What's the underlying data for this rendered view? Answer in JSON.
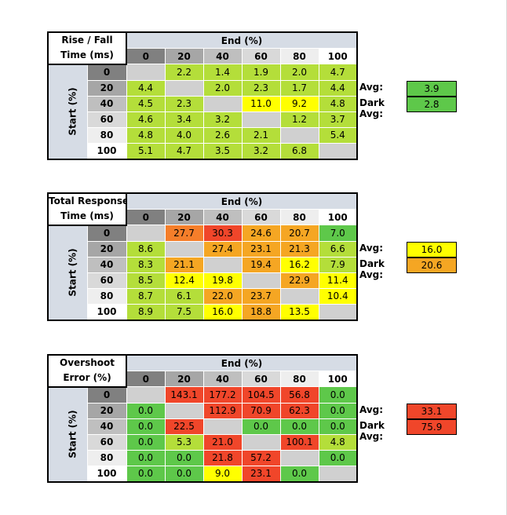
{
  "end_label": "End (%)",
  "start_label": "Start (%)",
  "columns": [
    "0",
    "20",
    "40",
    "60",
    "80",
    "100"
  ],
  "rows": [
    "0",
    "20",
    "40",
    "60",
    "80",
    "100"
  ],
  "avg_label": "Avg:",
  "dark_avg_label": "Dark Avg:",
  "colors": {
    "green": "#5ec84a",
    "yellowgreen": "#92d050",
    "lightgreen": "#b4de3a",
    "yellow": "#ffff00",
    "orange": "#f5a623",
    "darkorange": "#f57e2a",
    "red": "#f0462a",
    "grey": "#d0d0d0"
  },
  "tables": [
    {
      "corner": [
        "Rise / Fall",
        "Time (ms)"
      ],
      "cells": [
        [
          "",
          "2.2",
          "1.4",
          "1.9",
          "2.0",
          "4.7"
        ],
        [
          "4.4",
          "",
          "2.0",
          "2.3",
          "1.7",
          "4.4"
        ],
        [
          "4.5",
          "2.3",
          "",
          "11.0",
          "9.2",
          "4.8"
        ],
        [
          "4.6",
          "3.4",
          "3.2",
          "",
          "1.2",
          "3.7"
        ],
        [
          "4.8",
          "4.0",
          "2.6",
          "2.1",
          "",
          "5.4"
        ],
        [
          "5.1",
          "4.7",
          "3.5",
          "3.2",
          "6.8",
          ""
        ]
      ],
      "cell_colors": [
        [
          "grey",
          "lightgreen",
          "lightgreen",
          "lightgreen",
          "lightgreen",
          "lightgreen"
        ],
        [
          "lightgreen",
          "grey",
          "lightgreen",
          "lightgreen",
          "lightgreen",
          "lightgreen"
        ],
        [
          "lightgreen",
          "lightgreen",
          "grey",
          "yellow",
          "yellow",
          "lightgreen"
        ],
        [
          "lightgreen",
          "lightgreen",
          "lightgreen",
          "grey",
          "lightgreen",
          "lightgreen"
        ],
        [
          "lightgreen",
          "lightgreen",
          "lightgreen",
          "lightgreen",
          "grey",
          "lightgreen"
        ],
        [
          "lightgreen",
          "lightgreen",
          "lightgreen",
          "lightgreen",
          "lightgreen",
          "grey"
        ]
      ],
      "avg": "3.9",
      "avg_color": "green",
      "dark_avg": "2.8",
      "dark_avg_color": "green"
    },
    {
      "corner": [
        "Total Response",
        "Time (ms)"
      ],
      "cells": [
        [
          "",
          "27.7",
          "30.3",
          "24.6",
          "20.7",
          "7.0"
        ],
        [
          "8.6",
          "",
          "27.4",
          "23.1",
          "21.3",
          "6.6"
        ],
        [
          "8.3",
          "21.1",
          "",
          "19.4",
          "16.2",
          "7.9"
        ],
        [
          "8.5",
          "12.4",
          "19.8",
          "",
          "22.9",
          "11.4"
        ],
        [
          "8.7",
          "6.1",
          "22.0",
          "23.7",
          "",
          "10.4"
        ],
        [
          "8.9",
          "7.5",
          "16.0",
          "18.8",
          "13.5",
          ""
        ]
      ],
      "cell_colors": [
        [
          "grey",
          "darkorange",
          "red",
          "orange",
          "orange",
          "green"
        ],
        [
          "lightgreen",
          "grey",
          "orange",
          "orange",
          "orange",
          "lightgreen"
        ],
        [
          "lightgreen",
          "orange",
          "grey",
          "orange",
          "yellow",
          "lightgreen"
        ],
        [
          "lightgreen",
          "yellow",
          "yellow",
          "grey",
          "orange",
          "yellow"
        ],
        [
          "lightgreen",
          "lightgreen",
          "orange",
          "orange",
          "grey",
          "yellow"
        ],
        [
          "lightgreen",
          "lightgreen",
          "yellow",
          "orange",
          "yellow",
          "grey"
        ]
      ],
      "avg": "16.0",
      "avg_color": "yellow",
      "dark_avg": "20.6",
      "dark_avg_color": "orange"
    },
    {
      "corner": [
        "Overshoot",
        "Error (%)"
      ],
      "cells": [
        [
          "",
          "143.1",
          "177.2",
          "104.5",
          "56.8",
          "0.0"
        ],
        [
          "0.0",
          "",
          "112.9",
          "70.9",
          "62.3",
          "0.0"
        ],
        [
          "0.0",
          "22.5",
          "",
          "0.0",
          "0.0",
          "0.0"
        ],
        [
          "0.0",
          "5.3",
          "21.0",
          "",
          "100.1",
          "4.8"
        ],
        [
          "0.0",
          "0.0",
          "21.8",
          "57.2",
          "",
          "0.0"
        ],
        [
          "0.0",
          "0.0",
          "9.0",
          "23.1",
          "0.0",
          ""
        ]
      ],
      "cell_colors": [
        [
          "grey",
          "red",
          "red",
          "red",
          "red",
          "green"
        ],
        [
          "green",
          "grey",
          "red",
          "red",
          "red",
          "green"
        ],
        [
          "green",
          "red",
          "grey",
          "green",
          "green",
          "green"
        ],
        [
          "green",
          "lightgreen",
          "red",
          "grey",
          "red",
          "lightgreen"
        ],
        [
          "green",
          "green",
          "red",
          "red",
          "grey",
          "green"
        ],
        [
          "green",
          "green",
          "yellow",
          "red",
          "green",
          "grey"
        ]
      ],
      "avg": "33.1",
      "avg_color": "red",
      "dark_avg": "75.9",
      "dark_avg_color": "red"
    }
  ]
}
